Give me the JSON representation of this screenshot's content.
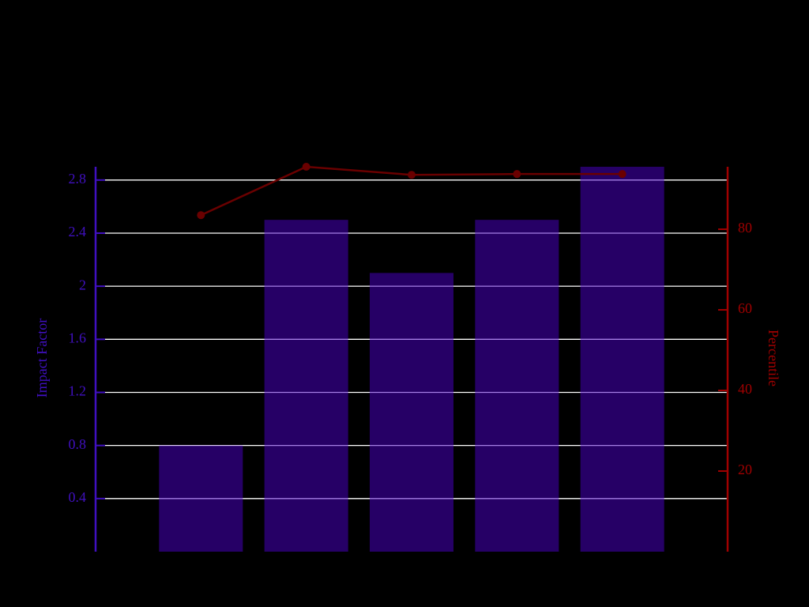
{
  "chart_data": {
    "type": "bar",
    "categories": [
      null,
      null,
      null,
      null,
      null
    ],
    "ylabel": "Impact Factor",
    "y2label": "Percentile",
    "ylim": [
      0,
      2.9
    ],
    "yticks": [
      0.4,
      0.8,
      1.2,
      1.6,
      2,
      2.4,
      2.8
    ],
    "y2lim": [
      0,
      95.5
    ],
    "y2ticks": [
      20,
      40,
      60,
      80
    ],
    "grid": true,
    "series": [
      {
        "type": "bar",
        "color": "#4b00cc",
        "values": [
          0.8,
          2.5,
          2.1,
          2.5,
          2.9
        ]
      },
      {
        "type": "line",
        "axis": "y2",
        "color": "#6a0000",
        "values": [
          83.5,
          95.5,
          93.5,
          93.7,
          93.7
        ]
      }
    ],
    "axis_color": "#4010c0",
    "axis2_color": "#a00000"
  }
}
